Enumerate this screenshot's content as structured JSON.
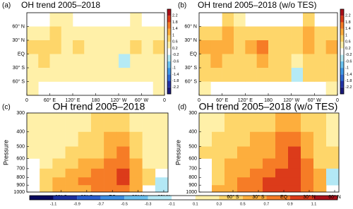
{
  "chart_data": [
    {
      "type": "heatmap",
      "panel": "(a)",
      "title": "OH trend 2005–2018",
      "xlim": [
        0,
        360
      ],
      "ylim": [
        -90,
        90
      ],
      "xticks": [
        0,
        {
          "value": 60,
          "label": "60° E"
        },
        {
          "value": 120,
          "label": "120° E"
        },
        {
          "value": 180,
          "label": "180"
        },
        {
          "value": 240,
          "label": "120° W"
        },
        {
          "value": 300,
          "label": "60° W"
        },
        {
          "value": 360,
          "label": "0"
        }
      ],
      "yticks": [
        {
          "value": 60,
          "label": "60° N"
        },
        {
          "value": 30,
          "label": "30° N"
        },
        {
          "value": 0,
          "label": "EQ"
        },
        {
          "value": -30,
          "label": "30° S"
        },
        {
          "value": -60,
          "label": "60° S"
        }
      ],
      "x_edges": [
        0,
        30,
        60,
        90,
        120,
        150,
        180,
        210,
        240,
        270,
        300,
        330,
        360
      ],
      "y_edges": [
        90,
        60,
        30,
        0,
        -30,
        -60,
        -90
      ],
      "values": [
        [
          null,
          null,
          0.4,
          0.4,
          null,
          null,
          null,
          null,
          null,
          0.4,
          null,
          null
        ],
        [
          0.4,
          0.4,
          0.8,
          0.4,
          0.4,
          0.4,
          0.4,
          0.4,
          0.4,
          0.4,
          0.4,
          0.4
        ],
        [
          0.8,
          0.8,
          0.8,
          0.4,
          0.8,
          0.4,
          0.4,
          0.4,
          0.4,
          0.8,
          0.4,
          0.8
        ],
        [
          0.4,
          0.8,
          0.4,
          0.4,
          0.4,
          0.4,
          0.4,
          0.4,
          -0.4,
          0.4,
          0.4,
          0.4
        ],
        [
          0.4,
          0.4,
          0.4,
          0.4,
          0.4,
          0.4,
          0.4,
          0.4,
          0.4,
          0.4,
          0.4,
          0.4
        ],
        [
          0.4,
          null,
          null,
          null,
          null,
          null,
          null,
          null,
          null,
          null,
          null,
          0.4
        ]
      ],
      "colorbar": {
        "ticks": [
          -2.2,
          -1.8,
          -1.4,
          -1,
          -0.6,
          -0.2,
          0.2,
          0.6,
          1,
          1.4,
          1.8,
          2.2
        ],
        "colors": [
          "#1a1a7a",
          "#2233a8",
          "#2e6bd6",
          "#3f98e8",
          "#6cc4f2",
          "#b5eaf5",
          "#ffffff",
          "#fff0a8",
          "#fed66a",
          "#fdae3d",
          "#f67c26",
          "#dc3b1a",
          "#a8101a"
        ]
      }
    },
    {
      "type": "heatmap",
      "panel": "(b)",
      "title": "OH trend 2005–2018 (w/o TES)",
      "xlim": [
        0,
        360
      ],
      "ylim": [
        -90,
        90
      ],
      "xticks": [
        0,
        {
          "value": 60,
          "label": "60° E"
        },
        {
          "value": 120,
          "label": "120° E"
        },
        {
          "value": 180,
          "label": "180"
        },
        {
          "value": 240,
          "label": "120° W"
        },
        {
          "value": 300,
          "label": "60° W"
        },
        {
          "value": 360,
          "label": "0"
        }
      ],
      "yticks": [
        {
          "value": 60,
          "label": "60° N"
        },
        {
          "value": 30,
          "label": "30° N"
        },
        {
          "value": 0,
          "label": "EQ"
        },
        {
          "value": -30,
          "label": "30° S"
        },
        {
          "value": -60,
          "label": "60° S"
        }
      ],
      "x_edges": [
        0,
        30,
        60,
        90,
        120,
        150,
        180,
        210,
        240,
        270,
        300,
        330,
        360
      ],
      "y_edges": [
        90,
        60,
        30,
        0,
        -30,
        -60,
        -90
      ],
      "values": [
        [
          null,
          null,
          0.8,
          0.4,
          null,
          null,
          null,
          null,
          null,
          0.8,
          null,
          null
        ],
        [
          0.8,
          0.8,
          1.2,
          0.8,
          0.8,
          0.8,
          0.8,
          0.8,
          0.8,
          1.2,
          0.8,
          0.8
        ],
        [
          1.2,
          1.2,
          1.2,
          0.8,
          1.2,
          1.6,
          0.8,
          0.8,
          0.8,
          1.2,
          0.8,
          1.2
        ],
        [
          0.8,
          1.2,
          0.8,
          0.8,
          0.8,
          1.2,
          0.8,
          0.8,
          0.4,
          0.8,
          0.8,
          0.8
        ],
        [
          0.8,
          0.8,
          0.8,
          0.8,
          0.8,
          0.8,
          0.8,
          0.8,
          -0.4,
          0.8,
          0.8,
          0.8
        ],
        [
          0.4,
          null,
          null,
          null,
          null,
          null,
          null,
          null,
          null,
          null,
          null,
          0.4
        ]
      ],
      "colorbar": {
        "ticks": [
          -2.2,
          -1.8,
          -1.4,
          -1,
          -0.6,
          -0.2,
          0.2,
          0.6,
          1,
          1.4,
          1.8,
          2.2
        ],
        "colors": [
          "#1a1a7a",
          "#2233a8",
          "#2e6bd6",
          "#3f98e8",
          "#6cc4f2",
          "#b5eaf5",
          "#ffffff",
          "#fff0a8",
          "#fed66a",
          "#fdae3d",
          "#f67c26",
          "#dc3b1a",
          "#a8101a"
        ]
      }
    },
    {
      "type": "heatmap",
      "panel": "(c)",
      "title": "OH trend 2005–2018",
      "ylabel": "Pressure",
      "ylog": true,
      "xlim": [
        -100,
        65
      ],
      "ylim": [
        1000,
        300
      ],
      "xticks": [
        {
          "value": -60,
          "label": "60° S"
        },
        {
          "value": -30,
          "label": "30° S"
        },
        {
          "value": 0,
          "label": "EQ"
        },
        {
          "value": 30,
          "label": "30° N"
        },
        {
          "value": 60,
          "label": "60° N"
        }
      ],
      "yticks": [
        300,
        400,
        500,
        600,
        700,
        800,
        900,
        1000
      ],
      "x_edges": [
        -100,
        -85,
        -70,
        -55,
        -40,
        -25,
        -10,
        5,
        20,
        35,
        50,
        65
      ],
      "y_edges": [
        300,
        400,
        500,
        600,
        700,
        800,
        900,
        1000
      ],
      "values": [
        [
          0.2,
          0.2,
          0.2,
          0.2,
          0.2,
          0.4,
          0.4,
          0.4,
          0.2,
          0.2,
          0.2
        ],
        [
          0.2,
          0.2,
          0.2,
          0.2,
          0.4,
          0.4,
          0.6,
          0.6,
          0.4,
          0.2,
          0.2
        ],
        [
          0.2,
          0.2,
          0.2,
          0.4,
          0.4,
          0.4,
          0.6,
          0.8,
          0.4,
          0.2,
          0.2
        ],
        [
          null,
          0.2,
          0.4,
          0.4,
          0.6,
          0.6,
          0.8,
          0.8,
          0.6,
          0.2,
          0.2
        ],
        [
          null,
          0.4,
          0.4,
          0.6,
          0.6,
          0.8,
          0.8,
          1.0,
          0.6,
          0.4,
          null
        ],
        [
          null,
          0.4,
          0.6,
          0.6,
          0.8,
          0.8,
          0.8,
          1.0,
          0.6,
          0.4,
          -0.2
        ],
        [
          null,
          0.4,
          0.6,
          0.6,
          0.6,
          0.8,
          0.8,
          0.8,
          0.6,
          null,
          -0.2
        ]
      ],
      "colorbar": {
        "ticks": [
          -1.1,
          -0.9,
          -0.7,
          -0.5,
          -0.3,
          -0.1,
          0.1,
          0.3,
          0.5,
          0.7,
          0.9,
          1.1
        ],
        "colors": [
          "#08085e",
          "#1c2fa0",
          "#2a5fd0",
          "#3c8ee4",
          "#6ac0ef",
          "#b3e8f5",
          "#ffffff",
          "#fff0a8",
          "#fed66a",
          "#fdae3d",
          "#f67c26",
          "#dc3b1a",
          "#a8101a"
        ]
      }
    },
    {
      "type": "heatmap",
      "panel": "(d)",
      "title": "OH trend 2005–2018 (w/o TES)",
      "ylabel": "Pressure",
      "ylog": true,
      "xlim": [
        -100,
        65
      ],
      "ylim": [
        1000,
        300
      ],
      "xticks": [
        {
          "value": -60,
          "label": "60° S"
        },
        {
          "value": -30,
          "label": "30° S"
        },
        {
          "value": 0,
          "label": "EQ"
        },
        {
          "value": 30,
          "label": "30° N"
        },
        {
          "value": 60,
          "label": "60° N"
        }
      ],
      "yticks": [
        300,
        400,
        500,
        600,
        700,
        800,
        900,
        1000
      ],
      "x_edges": [
        -100,
        -85,
        -70,
        -55,
        -40,
        -25,
        -10,
        5,
        20,
        35,
        50,
        65
      ],
      "y_edges": [
        300,
        400,
        500,
        600,
        700,
        800,
        900,
        1000
      ],
      "values": [
        [
          0.2,
          0.2,
          0.4,
          0.4,
          0.4,
          0.4,
          0.6,
          0.6,
          0.4,
          0.4,
          0.2
        ],
        [
          0.2,
          0.4,
          0.4,
          0.4,
          0.6,
          0.6,
          0.8,
          0.8,
          0.6,
          0.4,
          0.2
        ],
        [
          0.4,
          0.4,
          0.4,
          0.6,
          0.6,
          0.6,
          0.8,
          1.0,
          0.6,
          0.4,
          0.4
        ],
        [
          null,
          0.4,
          0.6,
          0.6,
          0.6,
          0.8,
          0.8,
          1.0,
          0.8,
          0.4,
          0.4
        ],
        [
          null,
          0.4,
          0.6,
          0.6,
          0.8,
          0.8,
          1.0,
          1.0,
          0.8,
          0.6,
          -0.2
        ],
        [
          null,
          0.4,
          0.6,
          0.8,
          0.8,
          1.0,
          1.0,
          1.0,
          0.8,
          0.6,
          -0.2
        ],
        [
          null,
          0.6,
          0.6,
          0.8,
          0.8,
          1.0,
          1.0,
          1.0,
          0.8,
          0.6,
          null
        ]
      ]
    }
  ]
}
